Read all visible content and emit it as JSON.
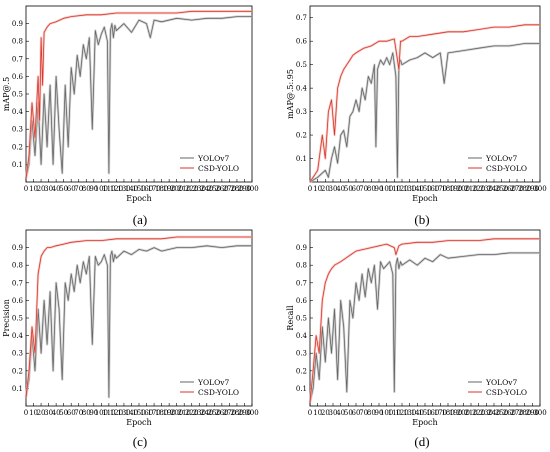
{
  "colors": {
    "yolov7": "#666666",
    "csd": "#d9362a",
    "csd_band": "#f4b7b2",
    "yolo_band": "#bdbdbd"
  },
  "chart_data": [
    {
      "type": "line",
      "caption": "(a)",
      "xlabel": "Epoch",
      "ylabel": "mAP@.5",
      "xlim": [
        0,
        300
      ],
      "ylim": [
        0,
        1.0
      ],
      "xticks": [
        "0",
        "10",
        "20",
        "30",
        "40",
        "50",
        "60",
        "70",
        "80",
        "90",
        "100",
        "110",
        "120",
        "130",
        "140",
        "150",
        "160",
        "170",
        "180",
        "190",
        "200",
        "210",
        "220",
        "230",
        "240",
        "250",
        "260",
        "270",
        "280",
        "290",
        "300"
      ],
      "yticks": [
        "0.1",
        "0.2",
        "0.3",
        "0.4",
        "0.5",
        "0.6",
        "0.7",
        "0.8",
        "0.9"
      ],
      "legend_position": "bottom-right",
      "series": [
        {
          "name": "YOLOv7",
          "color": "#666666",
          "x": [
            0,
            4,
            8,
            12,
            16,
            20,
            24,
            28,
            32,
            36,
            40,
            44,
            48,
            52,
            56,
            60,
            64,
            68,
            72,
            76,
            80,
            84,
            88,
            92,
            96,
            100,
            104,
            108,
            110,
            112,
            114,
            116,
            118,
            120,
            130,
            140,
            150,
            160,
            165,
            170,
            180,
            200,
            220,
            240,
            260,
            280,
            300
          ],
          "y": [
            0.02,
            0.1,
            0.35,
            0.15,
            0.45,
            0.1,
            0.5,
            0.2,
            0.55,
            0.1,
            0.6,
            0.3,
            0.05,
            0.55,
            0.2,
            0.65,
            0.5,
            0.72,
            0.6,
            0.78,
            0.7,
            0.82,
            0.3,
            0.86,
            0.78,
            0.84,
            0.88,
            0.8,
            0.05,
            0.86,
            0.9,
            0.82,
            0.89,
            0.86,
            0.9,
            0.85,
            0.92,
            0.9,
            0.82,
            0.92,
            0.91,
            0.93,
            0.92,
            0.93,
            0.93,
            0.94,
            0.94
          ]
        },
        {
          "name": "CSD-YOLO",
          "color": "#d9362a",
          "x": [
            0,
            4,
            8,
            12,
            16,
            18,
            20,
            22,
            24,
            28,
            32,
            40,
            50,
            60,
            80,
            100,
            120,
            140,
            160,
            180,
            200,
            220,
            240,
            260,
            280,
            300
          ],
          "y": [
            0.02,
            0.15,
            0.45,
            0.25,
            0.6,
            0.35,
            0.82,
            0.55,
            0.85,
            0.88,
            0.9,
            0.91,
            0.93,
            0.94,
            0.95,
            0.95,
            0.96,
            0.96,
            0.96,
            0.96,
            0.96,
            0.97,
            0.97,
            0.97,
            0.97,
            0.97
          ]
        }
      ]
    },
    {
      "type": "line",
      "caption": "(b)",
      "xlabel": "Epoch",
      "ylabel": "mAP@.5:.95",
      "xlim": [
        0,
        300
      ],
      "ylim": [
        0,
        0.75
      ],
      "xticks": [
        "0",
        "10",
        "20",
        "30",
        "40",
        "50",
        "60",
        "70",
        "80",
        "90",
        "100",
        "110",
        "120",
        "130",
        "140",
        "150",
        "160",
        "170",
        "180",
        "190",
        "200",
        "210",
        "220",
        "230",
        "240",
        "250",
        "260",
        "270",
        "280",
        "290",
        "300"
      ],
      "yticks": [
        "0.1",
        "0.2",
        "0.3",
        "0.4",
        "0.5",
        "0.6",
        "0.7"
      ],
      "legend_position": "bottom-right",
      "series": [
        {
          "name": "YOLOv7",
          "color": "#666666",
          "x": [
            0,
            10,
            20,
            24,
            28,
            32,
            36,
            40,
            44,
            48,
            52,
            56,
            60,
            64,
            68,
            72,
            76,
            80,
            84,
            86,
            88,
            92,
            96,
            100,
            104,
            108,
            112,
            114,
            116,
            118,
            120,
            130,
            140,
            150,
            160,
            170,
            175,
            180,
            200,
            220,
            240,
            260,
            280,
            300
          ],
          "y": [
            0.0,
            0.02,
            0.05,
            0.02,
            0.1,
            0.15,
            0.08,
            0.2,
            0.22,
            0.15,
            0.28,
            0.3,
            0.35,
            0.3,
            0.4,
            0.35,
            0.45,
            0.42,
            0.5,
            0.15,
            0.48,
            0.52,
            0.5,
            0.53,
            0.5,
            0.55,
            0.45,
            0.02,
            0.5,
            0.52,
            0.5,
            0.52,
            0.53,
            0.55,
            0.53,
            0.55,
            0.42,
            0.55,
            0.56,
            0.57,
            0.58,
            0.58,
            0.59,
            0.59
          ]
        },
        {
          "name": "CSD-YOLO",
          "color": "#d9362a",
          "x": [
            0,
            10,
            16,
            20,
            24,
            28,
            32,
            36,
            40,
            44,
            48,
            52,
            56,
            60,
            70,
            80,
            90,
            100,
            110,
            116,
            118,
            120,
            130,
            140,
            160,
            180,
            200,
            220,
            240,
            260,
            280,
            300
          ],
          "y": [
            0.0,
            0.05,
            0.2,
            0.1,
            0.3,
            0.35,
            0.2,
            0.4,
            0.45,
            0.48,
            0.5,
            0.52,
            0.54,
            0.55,
            0.57,
            0.58,
            0.6,
            0.6,
            0.61,
            0.48,
            0.6,
            0.6,
            0.62,
            0.62,
            0.63,
            0.64,
            0.64,
            0.65,
            0.66,
            0.66,
            0.67,
            0.67
          ]
        }
      ]
    },
    {
      "type": "line",
      "caption": "(c)",
      "xlabel": "Epoch",
      "ylabel": "Precision",
      "xlim": [
        0,
        300
      ],
      "ylim": [
        0,
        1.0
      ],
      "xticks": [
        "0",
        "10",
        "20",
        "30",
        "40",
        "50",
        "60",
        "70",
        "80",
        "90",
        "100",
        "110",
        "120",
        "130",
        "140",
        "150",
        "160",
        "170",
        "180",
        "190",
        "200",
        "210",
        "220",
        "230",
        "240",
        "250",
        "260",
        "270",
        "280",
        "290",
        "300"
      ],
      "yticks": [
        "0.1",
        "0.2",
        "0.3",
        "0.4",
        "0.5",
        "0.6",
        "0.7",
        "0.8",
        "0.9"
      ],
      "legend_position": "bottom-right",
      "series": [
        {
          "name": "YOLOv7",
          "color": "#666666",
          "x": [
            0,
            4,
            8,
            12,
            16,
            20,
            24,
            28,
            32,
            36,
            40,
            44,
            48,
            52,
            56,
            60,
            64,
            68,
            72,
            76,
            80,
            84,
            88,
            92,
            96,
            100,
            104,
            108,
            110,
            112,
            114,
            116,
            118,
            120,
            130,
            140,
            150,
            160,
            170,
            180,
            200,
            220,
            240,
            260,
            280,
            300
          ],
          "y": [
            0.05,
            0.15,
            0.4,
            0.2,
            0.55,
            0.3,
            0.6,
            0.35,
            0.65,
            0.2,
            0.7,
            0.55,
            0.15,
            0.7,
            0.6,
            0.75,
            0.65,
            0.8,
            0.7,
            0.82,
            0.75,
            0.85,
            0.35,
            0.85,
            0.8,
            0.82,
            0.86,
            0.8,
            0.05,
            0.85,
            0.88,
            0.82,
            0.86,
            0.84,
            0.88,
            0.86,
            0.89,
            0.88,
            0.9,
            0.88,
            0.9,
            0.9,
            0.91,
            0.9,
            0.91,
            0.91
          ]
        },
        {
          "name": "CSD-YOLO",
          "color": "#d9362a",
          "x": [
            0,
            4,
            8,
            12,
            16,
            20,
            24,
            28,
            32,
            40,
            50,
            60,
            80,
            100,
            120,
            140,
            160,
            180,
            200,
            220,
            240,
            260,
            280,
            300
          ],
          "y": [
            0.05,
            0.2,
            0.45,
            0.3,
            0.75,
            0.85,
            0.88,
            0.9,
            0.9,
            0.91,
            0.92,
            0.93,
            0.94,
            0.94,
            0.95,
            0.95,
            0.95,
            0.95,
            0.96,
            0.96,
            0.96,
            0.96,
            0.96,
            0.96
          ]
        }
      ]
    },
    {
      "type": "line",
      "caption": "(d)",
      "xlabel": "Epoch",
      "ylabel": "Recall",
      "xlim": [
        0,
        300
      ],
      "ylim": [
        0,
        1.0
      ],
      "xticks": [
        "0",
        "10",
        "20",
        "30",
        "40",
        "50",
        "60",
        "70",
        "80",
        "90",
        "100",
        "110",
        "120",
        "130",
        "140",
        "150",
        "160",
        "170",
        "180",
        "190",
        "200",
        "210",
        "220",
        "230",
        "240",
        "250",
        "260",
        "270",
        "280",
        "290",
        "300"
      ],
      "yticks": [
        "0.1",
        "0.2",
        "0.3",
        "0.4",
        "0.5",
        "0.6",
        "0.7",
        "0.8",
        "0.9"
      ],
      "legend_position": "bottom-right",
      "series": [
        {
          "name": "YOLOv7",
          "color": "#666666",
          "x": [
            0,
            4,
            8,
            12,
            16,
            20,
            24,
            28,
            32,
            36,
            40,
            44,
            48,
            52,
            56,
            60,
            64,
            68,
            72,
            76,
            80,
            84,
            88,
            92,
            96,
            100,
            104,
            108,
            110,
            112,
            114,
            116,
            118,
            120,
            130,
            140,
            150,
            160,
            170,
            180,
            200,
            220,
            240,
            260,
            280,
            300
          ],
          "y": [
            0.02,
            0.1,
            0.3,
            0.15,
            0.45,
            0.25,
            0.5,
            0.3,
            0.55,
            0.15,
            0.6,
            0.45,
            0.08,
            0.6,
            0.5,
            0.7,
            0.6,
            0.75,
            0.62,
            0.78,
            0.7,
            0.8,
            0.55,
            0.82,
            0.78,
            0.8,
            0.82,
            0.75,
            0.08,
            0.8,
            0.84,
            0.78,
            0.82,
            0.8,
            0.83,
            0.8,
            0.84,
            0.82,
            0.86,
            0.84,
            0.85,
            0.86,
            0.86,
            0.87,
            0.87,
            0.87
          ]
        },
        {
          "name": "CSD-YOLO",
          "color": "#d9362a",
          "x": [
            0,
            4,
            8,
            12,
            16,
            20,
            24,
            28,
            32,
            40,
            50,
            60,
            80,
            100,
            110,
            112,
            116,
            120,
            140,
            160,
            180,
            200,
            220,
            240,
            260,
            280,
            300
          ],
          "y": [
            0.02,
            0.2,
            0.4,
            0.3,
            0.6,
            0.7,
            0.75,
            0.78,
            0.8,
            0.82,
            0.85,
            0.88,
            0.9,
            0.92,
            0.9,
            0.86,
            0.91,
            0.92,
            0.93,
            0.93,
            0.94,
            0.94,
            0.94,
            0.95,
            0.95,
            0.95,
            0.95
          ]
        }
      ]
    }
  ]
}
